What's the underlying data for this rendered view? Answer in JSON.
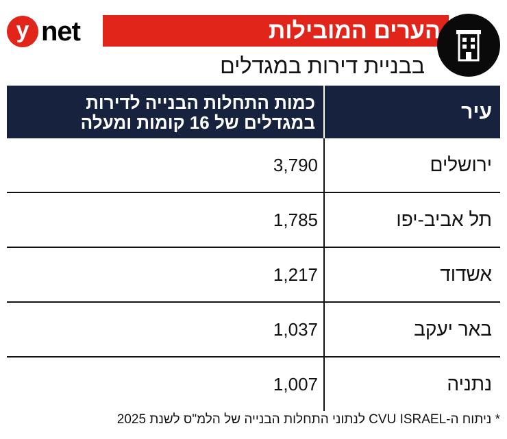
{
  "brand": {
    "y": "y",
    "net": "net"
  },
  "header": {
    "title": "הערים המובילות",
    "subtitle": "בבניית דירות במגדלים",
    "icon": "apartment-building-icon"
  },
  "colors": {
    "accent": "#e1251b",
    "header_bg": "#17223f"
  },
  "table": {
    "columns": [
      "עיר",
      "כמות התחלות הבנייה לדירות במגדלים של 16 קומות ומעלה"
    ],
    "column_lines": [
      "כמות התחלות הבנייה לדירות",
      "במגדלים של 16 קומות ומעלה"
    ],
    "rows": [
      {
        "city": "ירושלים",
        "count": "3,790"
      },
      {
        "city": "תל אביב-יפו",
        "count": "1,785"
      },
      {
        "city": "אשדוד",
        "count": "1,217"
      },
      {
        "city": "באר יעקב",
        "count": "1,037"
      },
      {
        "city": "נתניה",
        "count": "1,007"
      }
    ]
  },
  "footnote": "* ניתוח ה-CVU ISRAEL לנתוני התחלות הבנייה של הלמ\"ס לשנת 2025",
  "chart_data": {
    "type": "table",
    "title": "הערים המובילות",
    "subtitle": "בבניית דירות במגדלים",
    "columns": [
      "עיר",
      "כמות התחלות הבנייה לדירות במגדלים של 16 קומות ומעלה"
    ],
    "categories": [
      "ירושלים",
      "תל אביב-יפו",
      "אשדוד",
      "באר יעקב",
      "נתניה"
    ],
    "values": [
      3790,
      1785,
      1217,
      1037,
      1007
    ]
  }
}
